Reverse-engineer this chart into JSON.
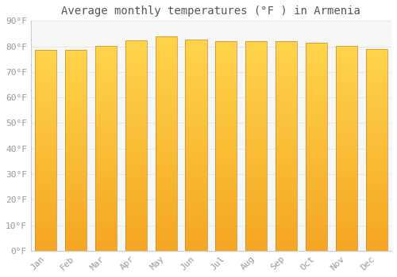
{
  "title": "Average monthly temperatures (°F ) in Armenia",
  "months": [
    "Jan",
    "Feb",
    "Mar",
    "Apr",
    "May",
    "Jun",
    "Jul",
    "Aug",
    "Sep",
    "Oct",
    "Nov",
    "Dec"
  ],
  "values": [
    78.5,
    78.5,
    80.2,
    82.3,
    83.8,
    82.8,
    82.0,
    82.0,
    82.0,
    81.5,
    80.3,
    79.0
  ],
  "ylim": [
    0,
    90
  ],
  "yticks": [
    0,
    10,
    20,
    30,
    40,
    50,
    60,
    70,
    80,
    90
  ],
  "bar_color_bottom": "#F5A623",
  "bar_color_top": "#FFD44A",
  "bar_edge_color": "#C8882A",
  "background_color": "#ffffff",
  "plot_bg_color": "#f7f7f7",
  "grid_color": "#e8e8e8",
  "title_fontsize": 10,
  "tick_fontsize": 8
}
